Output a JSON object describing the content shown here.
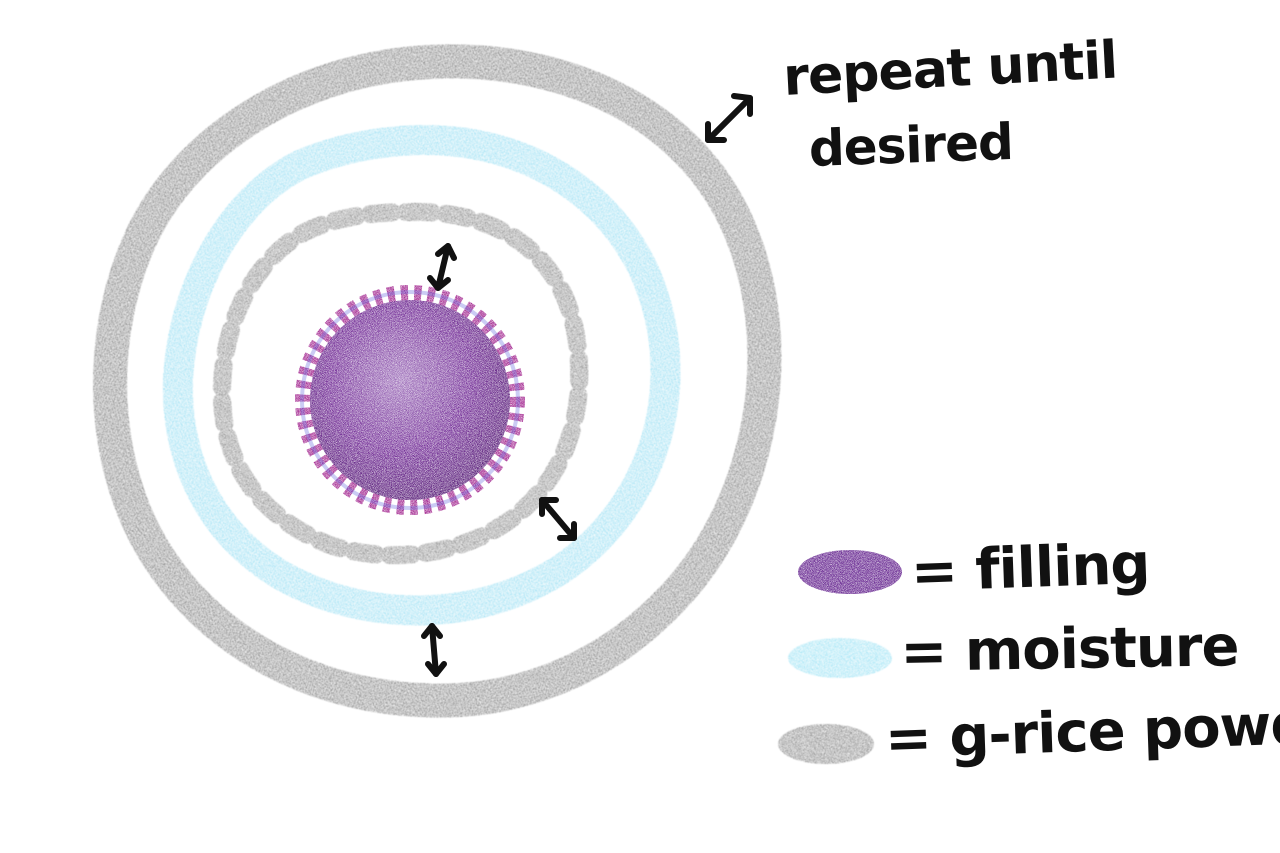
{
  "annotation": {
    "line1": "repeat until",
    "line2": "desired"
  },
  "legend": {
    "filling": {
      "label": "= filling",
      "color": "#5e1a8a"
    },
    "moisture": {
      "label": "= moisture",
      "color": "#5fd0ee"
    },
    "powder": {
      "label": "= g-rice powder",
      "color": "#3a3a3a"
    }
  },
  "layers": {
    "filling": "#5e1a8a",
    "filling_edge": "#9a1e8a",
    "moisture": "#62cdec",
    "powder": "#2e2e2e"
  },
  "icons": [
    "double-arrow-icon"
  ]
}
